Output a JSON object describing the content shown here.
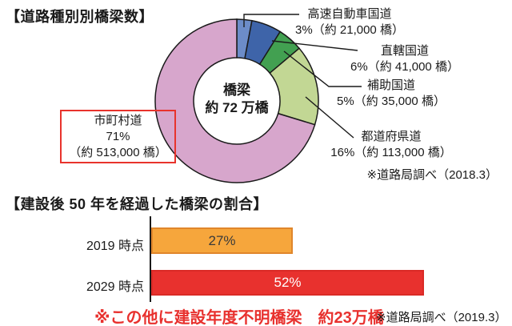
{
  "section1": {
    "title": "【道路種別別橋梁数】",
    "source_note": "※道路局調べ（2018.3）",
    "highlight_box": {
      "line1": "市町村道",
      "line2": "71%",
      "line3": "（約 513,000 橋）"
    }
  },
  "section2": {
    "title": "【建設後 50 年を経過した橋梁の割合】",
    "source_note": "※道路局調べ（2019.3）",
    "red_note": "※この他に建設年度不明橋梁　約23万橋"
  },
  "chart_data": [
    {
      "type": "pie",
      "title": "道路種別別橋梁数",
      "donut": true,
      "center_label": {
        "line1": "橋梁",
        "line2": "約 72 万橋"
      },
      "total_label": "橋梁 約72万橋",
      "slices": [
        {
          "label": "高速自動車国道",
          "percent": 3,
          "count": 21000,
          "display": "3%（約 21,000 橋）",
          "color": "#6c8cc8"
        },
        {
          "label": "直轄国道",
          "percent": 6,
          "count": 41000,
          "display": "6%（約 41,000 橋）",
          "color": "#3e64a9"
        },
        {
          "label": "補助国道",
          "percent": 5,
          "count": 35000,
          "display": "5%（約 35,000 橋）",
          "color": "#42a051"
        },
        {
          "label": "都道府県道",
          "percent": 16,
          "count": 113000,
          "display": "16%（約 113,000 橋）",
          "color": "#c2d794"
        },
        {
          "label": "市町村道",
          "percent": 71,
          "count": 513000,
          "display": "71%（約 513,000 橋）",
          "color": "#d7a6cc"
        }
      ],
      "stroke_color": "#1a1a1a",
      "source": "※道路局調べ（2018.3）"
    },
    {
      "type": "bar",
      "title": "建設後50年を経過した橋梁の割合",
      "orientation": "horizontal",
      "categories": [
        "2019 時点",
        "2029 時点"
      ],
      "values": [
        27,
        52
      ],
      "value_labels": [
        "27%",
        "52%"
      ],
      "colors": [
        "#f6a63c",
        "#e8312e"
      ],
      "xlim": [
        0,
        100
      ],
      "grid": false,
      "note": "※この他に建設年度不明橋梁　約23万橋",
      "source": "※道路局調べ（2019.3）"
    }
  ]
}
